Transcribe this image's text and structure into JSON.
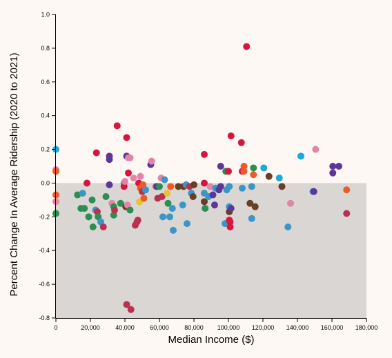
{
  "chart_data": {
    "type": "scatter",
    "xlabel": "Median Income ($)",
    "ylabel": "Percent Change In Average Ridership (2020 to 2021)",
    "xlim": [
      0,
      180000
    ],
    "ylim": [
      -0.8,
      1.0
    ],
    "x_ticks": [
      0,
      20000,
      40000,
      60000,
      80000,
      100000,
      120000,
      140000,
      160000,
      180000
    ],
    "x_tick_labels": [
      "0",
      "20,000",
      "40,000",
      "60,000",
      "80,000",
      "100,000",
      "120,000",
      "140,000",
      "160,000",
      "180,000"
    ],
    "y_ticks": [
      -0.8,
      -0.6,
      -0.4,
      -0.2,
      0.0,
      0.2,
      0.4,
      0.6,
      0.8,
      1.0
    ],
    "y_tick_labels": [
      "-0.8",
      "-0.6",
      "-0.4",
      "-0.2",
      "0.0",
      "0.2",
      "0.4",
      "0.6",
      "0.8",
      "1.0"
    ],
    "negative_region_color": "#d9d6d3",
    "background_color": "#fdf8f3",
    "grid": false,
    "legend": "none",
    "colors": {
      "red": "#d6163f",
      "purple": "#5b3898",
      "blue": "#3b96c8",
      "green": "#2c8f52",
      "brown": "#6b3d24",
      "orange": "#ec5a2a",
      "pink": "#e186a8",
      "yellow": "#e8c336",
      "cyan": "#1ea7dc",
      "crimson": "#b83250"
    },
    "points": [
      {
        "x": 0,
        "y": 0.2,
        "color": "cyan"
      },
      {
        "x": 0,
        "y": 0.08,
        "color": "pink"
      },
      {
        "x": 0,
        "y": 0.07,
        "color": "orange"
      },
      {
        "x": 0,
        "y": -0.07,
        "color": "orange"
      },
      {
        "x": 0,
        "y": -0.11,
        "color": "pink"
      },
      {
        "x": 0,
        "y": -0.18,
        "color": "green"
      },
      {
        "x": 12500,
        "y": -0.07,
        "color": "green"
      },
      {
        "x": 14500,
        "y": -0.15,
        "color": "green"
      },
      {
        "x": 15500,
        "y": -0.06,
        "color": "blue"
      },
      {
        "x": 16500,
        "y": -0.15,
        "color": "green"
      },
      {
        "x": 18000,
        "y": 0.0,
        "color": "red"
      },
      {
        "x": 19000,
        "y": -0.2,
        "color": "green"
      },
      {
        "x": 21000,
        "y": -0.1,
        "color": "green"
      },
      {
        "x": 21500,
        "y": -0.26,
        "color": "green"
      },
      {
        "x": 23000,
        "y": -0.16,
        "color": "blue"
      },
      {
        "x": 23500,
        "y": 0.18,
        "color": "red"
      },
      {
        "x": 24000,
        "y": -0.17,
        "color": "crimson"
      },
      {
        "x": 24500,
        "y": -0.2,
        "color": "green"
      },
      {
        "x": 26000,
        "y": -0.23,
        "color": "blue"
      },
      {
        "x": 27500,
        "y": -0.26,
        "color": "crimson"
      },
      {
        "x": 29000,
        "y": -0.08,
        "color": "green"
      },
      {
        "x": 31000,
        "y": 0.16,
        "color": "purple"
      },
      {
        "x": 31000,
        "y": 0.14,
        "color": "purple"
      },
      {
        "x": 31000,
        "y": -0.01,
        "color": "purple"
      },
      {
        "x": 32500,
        "y": -0.12,
        "color": "pink"
      },
      {
        "x": 33500,
        "y": -0.14,
        "color": "green"
      },
      {
        "x": 33500,
        "y": -0.19,
        "color": "green"
      },
      {
        "x": 34000,
        "y": -0.16,
        "color": "crimson"
      },
      {
        "x": 35500,
        "y": 0.34,
        "color": "red"
      },
      {
        "x": 37500,
        "y": -0.12,
        "color": "green"
      },
      {
        "x": 39500,
        "y": 0.0,
        "color": "blue"
      },
      {
        "x": 39500,
        "y": -0.02,
        "color": "red"
      },
      {
        "x": 40000,
        "y": 0.01,
        "color": "pink"
      },
      {
        "x": 40500,
        "y": -0.14,
        "color": "brown"
      },
      {
        "x": 41000,
        "y": 0.27,
        "color": "red"
      },
      {
        "x": 41000,
        "y": 0.16,
        "color": "purple"
      },
      {
        "x": 41000,
        "y": -0.72,
        "color": "crimson"
      },
      {
        "x": 41500,
        "y": -0.13,
        "color": "pink"
      },
      {
        "x": 42000,
        "y": 0.06,
        "color": "red"
      },
      {
        "x": 42000,
        "y": 0.15,
        "color": "pink"
      },
      {
        "x": 43000,
        "y": 0.15,
        "color": "pink"
      },
      {
        "x": 43000,
        "y": -0.16,
        "color": "green"
      },
      {
        "x": 43500,
        "y": -0.75,
        "color": "crimson"
      },
      {
        "x": 45000,
        "y": 0.03,
        "color": "pink"
      },
      {
        "x": 46000,
        "y": -0.25,
        "color": "crimson"
      },
      {
        "x": 47000,
        "y": -0.23,
        "color": "crimson"
      },
      {
        "x": 47500,
        "y": -0.22,
        "color": "crimson"
      },
      {
        "x": 48000,
        "y": 0.0,
        "color": "red"
      },
      {
        "x": 48500,
        "y": -0.11,
        "color": "yellow"
      },
      {
        "x": 49000,
        "y": 0.04,
        "color": "pink"
      },
      {
        "x": 49000,
        "y": -0.03,
        "color": "orange"
      },
      {
        "x": 50000,
        "y": -0.05,
        "color": "crimson"
      },
      {
        "x": 50500,
        "y": -0.01,
        "color": "orange"
      },
      {
        "x": 51000,
        "y": -0.09,
        "color": "orange"
      },
      {
        "x": 52000,
        "y": -0.04,
        "color": "blue"
      },
      {
        "x": 55000,
        "y": 0.11,
        "color": "purple"
      },
      {
        "x": 55500,
        "y": 0.13,
        "color": "pink"
      },
      {
        "x": 58000,
        "y": -0.02,
        "color": "orange"
      },
      {
        "x": 58500,
        "y": -0.02,
        "color": "purple"
      },
      {
        "x": 59000,
        "y": -0.09,
        "color": "crimson"
      },
      {
        "x": 60000,
        "y": -0.02,
        "color": "green"
      },
      {
        "x": 61000,
        "y": 0.03,
        "color": "pink"
      },
      {
        "x": 61500,
        "y": -0.08,
        "color": "crimson"
      },
      {
        "x": 62000,
        "y": -0.2,
        "color": "blue"
      },
      {
        "x": 63000,
        "y": 0.02,
        "color": "blue"
      },
      {
        "x": 64500,
        "y": -0.06,
        "color": "yellow"
      },
      {
        "x": 65000,
        "y": -0.12,
        "color": "green"
      },
      {
        "x": 66000,
        "y": -0.2,
        "color": "blue"
      },
      {
        "x": 66500,
        "y": -0.02,
        "color": "orange"
      },
      {
        "x": 67500,
        "y": -0.15,
        "color": "blue"
      },
      {
        "x": 68000,
        "y": -0.28,
        "color": "blue"
      },
      {
        "x": 71000,
        "y": -0.02,
        "color": "brown"
      },
      {
        "x": 73500,
        "y": -0.13,
        "color": "blue"
      },
      {
        "x": 74000,
        "y": -0.02,
        "color": "brown"
      },
      {
        "x": 75500,
        "y": -0.01,
        "color": "blue"
      },
      {
        "x": 76000,
        "y": -0.24,
        "color": "blue"
      },
      {
        "x": 77500,
        "y": -0.02,
        "color": "crimson"
      },
      {
        "x": 78500,
        "y": -0.06,
        "color": "blue"
      },
      {
        "x": 79500,
        "y": -0.08,
        "color": "brown"
      },
      {
        "x": 80000,
        "y": -0.01,
        "color": "brown"
      },
      {
        "x": 86000,
        "y": 0.17,
        "color": "red"
      },
      {
        "x": 86000,
        "y": 0.0,
        "color": "red"
      },
      {
        "x": 86000,
        "y": -0.06,
        "color": "blue"
      },
      {
        "x": 86000,
        "y": -0.11,
        "color": "brown"
      },
      {
        "x": 86500,
        "y": -0.15,
        "color": "green"
      },
      {
        "x": 88500,
        "y": -0.08,
        "color": "blue"
      },
      {
        "x": 89500,
        "y": -0.02,
        "color": "pink"
      },
      {
        "x": 91000,
        "y": -0.07,
        "color": "purple"
      },
      {
        "x": 92000,
        "y": -0.13,
        "color": "purple"
      },
      {
        "x": 92500,
        "y": -0.03,
        "color": "blue"
      },
      {
        "x": 94500,
        "y": -0.04,
        "color": "purple"
      },
      {
        "x": 95500,
        "y": 0.1,
        "color": "purple"
      },
      {
        "x": 95500,
        "y": -0.02,
        "color": "purple"
      },
      {
        "x": 98000,
        "y": -0.24,
        "color": "blue"
      },
      {
        "x": 98500,
        "y": 0.07,
        "color": "green"
      },
      {
        "x": 99000,
        "y": -0.04,
        "color": "blue"
      },
      {
        "x": 100000,
        "y": 0.07,
        "color": "red"
      },
      {
        "x": 100500,
        "y": -0.02,
        "color": "blue"
      },
      {
        "x": 100500,
        "y": -0.14,
        "color": "blue"
      },
      {
        "x": 100500,
        "y": -0.17,
        "color": "brown"
      },
      {
        "x": 100500,
        "y": -0.22,
        "color": "red"
      },
      {
        "x": 101000,
        "y": -0.23,
        "color": "red"
      },
      {
        "x": 101000,
        "y": -0.26,
        "color": "red"
      },
      {
        "x": 101500,
        "y": 0.28,
        "color": "red"
      },
      {
        "x": 101500,
        "y": -0.15,
        "color": "purple"
      },
      {
        "x": 107500,
        "y": 0.24,
        "color": "red"
      },
      {
        "x": 108000,
        "y": 0.07,
        "color": "red"
      },
      {
        "x": 108000,
        "y": -0.03,
        "color": "blue"
      },
      {
        "x": 109000,
        "y": 0.1,
        "color": "orange"
      },
      {
        "x": 109000,
        "y": 0.07,
        "color": "orange"
      },
      {
        "x": 110500,
        "y": 0.81,
        "color": "red"
      },
      {
        "x": 112500,
        "y": -0.12,
        "color": "brown"
      },
      {
        "x": 113500,
        "y": -0.02,
        "color": "blue"
      },
      {
        "x": 113500,
        "y": -0.21,
        "color": "blue"
      },
      {
        "x": 114500,
        "y": 0.09,
        "color": "green"
      },
      {
        "x": 114500,
        "y": 0.05,
        "color": "orange"
      },
      {
        "x": 115500,
        "y": -0.14,
        "color": "brown"
      },
      {
        "x": 120500,
        "y": 0.09,
        "color": "cyan"
      },
      {
        "x": 123500,
        "y": 0.04,
        "color": "brown"
      },
      {
        "x": 129500,
        "y": 0.03,
        "color": "cyan"
      },
      {
        "x": 131000,
        "y": -0.02,
        "color": "brown"
      },
      {
        "x": 134500,
        "y": -0.26,
        "color": "blue"
      },
      {
        "x": 136000,
        "y": -0.12,
        "color": "pink"
      },
      {
        "x": 142000,
        "y": 0.16,
        "color": "cyan"
      },
      {
        "x": 149000,
        "y": -0.05,
        "color": "blue"
      },
      {
        "x": 149500,
        "y": -0.05,
        "color": "purple"
      },
      {
        "x": 150500,
        "y": 0.2,
        "color": "pink"
      },
      {
        "x": 160500,
        "y": 0.1,
        "color": "purple"
      },
      {
        "x": 160500,
        "y": 0.06,
        "color": "purple"
      },
      {
        "x": 164000,
        "y": 0.1,
        "color": "purple"
      },
      {
        "x": 168500,
        "y": -0.04,
        "color": "orange"
      },
      {
        "x": 168500,
        "y": -0.18,
        "color": "crimson"
      }
    ]
  }
}
